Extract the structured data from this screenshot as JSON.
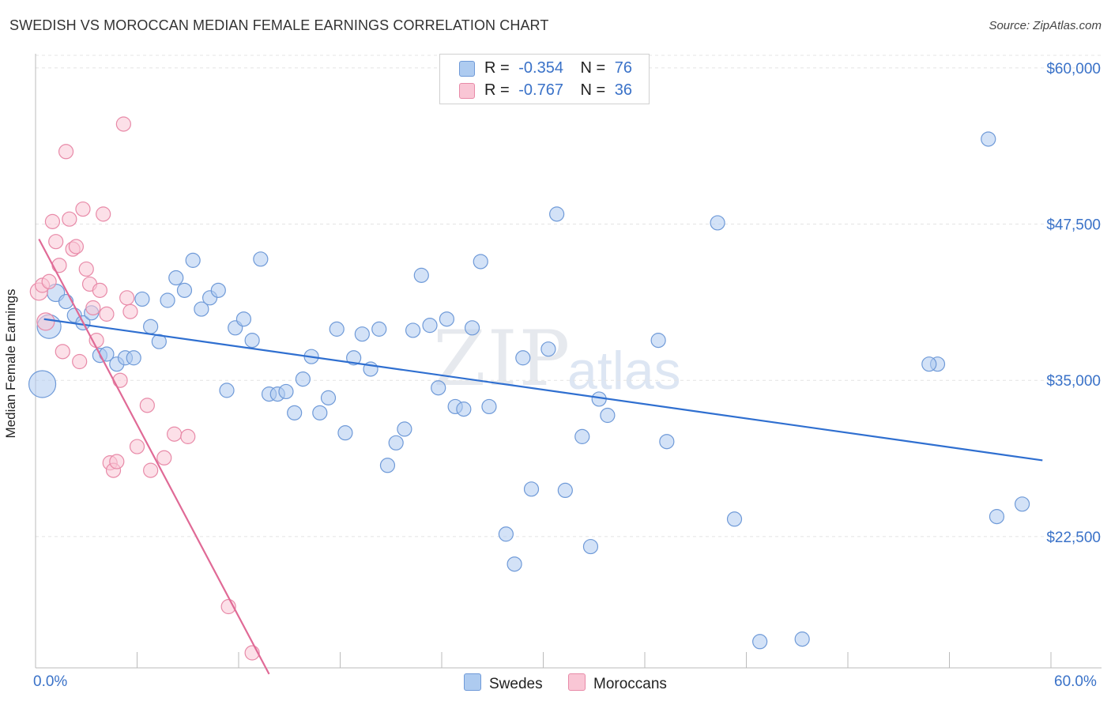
{
  "title": "SWEDISH VS MOROCCAN MEDIAN FEMALE EARNINGS CORRELATION CHART",
  "source": "Source: ZipAtlas.com",
  "watermark": {
    "zip": "ZIP",
    "atlas": "atlas"
  },
  "legend": {
    "rows": [
      {
        "r_label": "R =",
        "r_value": "-0.354",
        "n_label": "N =",
        "n_value": "76",
        "color": "#aecbf0",
        "border": "#6f9ad8"
      },
      {
        "r_label": "R =",
        "r_value": "-0.767",
        "n_label": "N =",
        "n_value": "36",
        "color": "#f9c6d5",
        "border": "#e88aa8"
      }
    ]
  },
  "bottom_legend": [
    {
      "label": "Swedes",
      "color": "#aecbf0",
      "border": "#6f9ad8"
    },
    {
      "label": "Moroccans",
      "color": "#f9c6d5",
      "border": "#e88aa8"
    }
  ],
  "chart_data": {
    "type": "scatter",
    "title": "SWEDISH VS MOROCCAN MEDIAN FEMALE EARNINGS CORRELATION CHART",
    "xlabel": "",
    "ylabel": "Median Female Earnings",
    "xlim": [
      0,
      60
    ],
    "ylim": [
      12000,
      61000
    ],
    "x_tick_labels": [
      "0.0%",
      "60.0%"
    ],
    "y_ticks": [
      22500,
      35000,
      47500,
      60000
    ],
    "y_tick_labels": [
      "$22,500",
      "$35,000",
      "$47,500",
      "$60,000"
    ],
    "series": [
      {
        "name": "Swedes",
        "color": "#6f9ad8",
        "fill": "#aecbf0",
        "trend": {
          "x": [
            0.5,
            59.5
          ],
          "y": [
            39900,
            28600
          ],
          "color": "#2f6fd0"
        },
        "points": [
          [
            0.4,
            34700,
            17
          ],
          [
            0.8,
            39300,
            15
          ],
          [
            1.2,
            42000,
            11
          ],
          [
            1.8,
            41300,
            9
          ],
          [
            2.3,
            40200,
            9
          ],
          [
            2.8,
            39600,
            9
          ],
          [
            3.3,
            40400,
            9
          ],
          [
            3.8,
            37000,
            9
          ],
          [
            4.2,
            37100,
            9
          ],
          [
            4.8,
            36300,
            9
          ],
          [
            5.3,
            36800,
            9
          ],
          [
            5.8,
            36800,
            9
          ],
          [
            6.3,
            41500,
            9
          ],
          [
            6.8,
            39300,
            9
          ],
          [
            7.3,
            38100,
            9
          ],
          [
            7.8,
            41400,
            9
          ],
          [
            8.3,
            43200,
            9
          ],
          [
            8.8,
            42200,
            9
          ],
          [
            9.3,
            44600,
            9
          ],
          [
            9.8,
            40700,
            9
          ],
          [
            10.3,
            41600,
            9
          ],
          [
            10.8,
            42200,
            9
          ],
          [
            11.3,
            34200,
            9
          ],
          [
            11.8,
            39200,
            9
          ],
          [
            12.3,
            39900,
            9
          ],
          [
            12.8,
            38200,
            9
          ],
          [
            13.3,
            44700,
            9
          ],
          [
            13.8,
            33900,
            9
          ],
          [
            14.3,
            33900,
            9
          ],
          [
            14.8,
            34100,
            9
          ],
          [
            15.3,
            32400,
            9
          ],
          [
            15.8,
            35100,
            9
          ],
          [
            16.3,
            36900,
            9
          ],
          [
            16.8,
            32400,
            9
          ],
          [
            17.3,
            33600,
            9
          ],
          [
            17.8,
            39100,
            9
          ],
          [
            18.3,
            30800,
            9
          ],
          [
            18.8,
            36800,
            9
          ],
          [
            19.3,
            38700,
            9
          ],
          [
            19.8,
            35900,
            9
          ],
          [
            20.3,
            39100,
            9
          ],
          [
            20.8,
            28200,
            9
          ],
          [
            21.3,
            30000,
            9
          ],
          [
            21.8,
            31100,
            9
          ],
          [
            22.3,
            39000,
            9
          ],
          [
            22.8,
            43400,
            9
          ],
          [
            23.3,
            39400,
            9
          ],
          [
            23.8,
            34400,
            9
          ],
          [
            24.3,
            39900,
            9
          ],
          [
            24.8,
            32900,
            9
          ],
          [
            25.3,
            32700,
            9
          ],
          [
            25.8,
            39200,
            9
          ],
          [
            26.3,
            44500,
            9
          ],
          [
            26.8,
            32900,
            9
          ],
          [
            27.8,
            22700,
            9
          ],
          [
            28.3,
            20300,
            9
          ],
          [
            28.8,
            36800,
            9
          ],
          [
            29.3,
            26300,
            9
          ],
          [
            30.3,
            37500,
            9
          ],
          [
            30.8,
            48300,
            9
          ],
          [
            31.3,
            26200,
            9
          ],
          [
            32.3,
            30500,
            9
          ],
          [
            32.8,
            21700,
            9
          ],
          [
            33.3,
            33500,
            9
          ],
          [
            33.8,
            32200,
            9
          ],
          [
            36.8,
            38200,
            9
          ],
          [
            37.3,
            30100,
            9
          ],
          [
            40.3,
            47600,
            9
          ],
          [
            41.3,
            23900,
            9
          ],
          [
            42.8,
            14100,
            9
          ],
          [
            45.3,
            14300,
            9
          ],
          [
            53.3,
            36300,
            9
          ],
          [
            56.3,
            54300,
            9
          ],
          [
            56.8,
            24100,
            9
          ],
          [
            58.3,
            25100,
            9
          ],
          [
            52.8,
            36300,
            9
          ]
        ]
      },
      {
        "name": "Moroccans",
        "color": "#e88aa8",
        "fill": "#f9c6d5",
        "trend": {
          "x": [
            0.2,
            13.8
          ],
          "y": [
            46300,
            11500
          ],
          "color": "#e06a96"
        },
        "points": [
          [
            0.2,
            42100,
            11
          ],
          [
            0.4,
            42600,
            9
          ],
          [
            0.6,
            39700,
            11
          ],
          [
            0.8,
            42900,
            9
          ],
          [
            1.0,
            47700,
            9
          ],
          [
            1.2,
            46100,
            9
          ],
          [
            1.4,
            44200,
            9
          ],
          [
            1.6,
            37300,
            9
          ],
          [
            1.8,
            53300,
            9
          ],
          [
            2.0,
            47900,
            9
          ],
          [
            2.2,
            45500,
            9
          ],
          [
            2.4,
            45700,
            9
          ],
          [
            2.6,
            36500,
            9
          ],
          [
            2.8,
            48700,
            9
          ],
          [
            3.0,
            43900,
            9
          ],
          [
            3.2,
            42700,
            9
          ],
          [
            3.4,
            40800,
            9
          ],
          [
            3.6,
            38200,
            9
          ],
          [
            3.8,
            42200,
            9
          ],
          [
            4.0,
            48300,
            9
          ],
          [
            4.2,
            40300,
            9
          ],
          [
            4.4,
            28400,
            9
          ],
          [
            4.6,
            27800,
            9
          ],
          [
            4.8,
            28500,
            9
          ],
          [
            5.0,
            35000,
            9
          ],
          [
            5.2,
            55500,
            9
          ],
          [
            5.4,
            41600,
            9
          ],
          [
            5.6,
            40500,
            9
          ],
          [
            6.0,
            29700,
            9
          ],
          [
            6.6,
            33000,
            9
          ],
          [
            6.8,
            27800,
            9
          ],
          [
            7.6,
            28800,
            9
          ],
          [
            8.2,
            30700,
            9
          ],
          [
            9.0,
            30500,
            9
          ],
          [
            11.4,
            16900,
            9
          ],
          [
            12.8,
            13200,
            9
          ]
        ]
      }
    ]
  }
}
